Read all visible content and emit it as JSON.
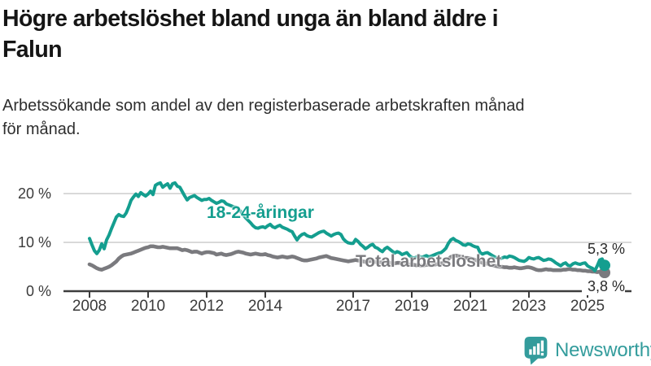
{
  "header": {
    "title_line1": "Högre arbetslöshet bland unga än bland äldre i",
    "title_line2": "Falun",
    "subtitle_line1": "Arbetssökande som andel av den registerbaserade arbetskraften månad",
    "subtitle_line2": "för månad."
  },
  "chart_data": {
    "type": "line",
    "title": "Högre arbetslöshet bland unga än bland äldre i Falun",
    "subtitle": "Arbetssökande som andel av den registerbaserade arbetskraften månad för månad.",
    "unit": "%",
    "grid": "horizontal",
    "legend_position": "inline-labels",
    "x_start_year": 2008,
    "points_per_year": 12,
    "x_ticks": [
      2008,
      2010,
      2012,
      2014,
      2017,
      2019,
      2021,
      2023,
      2025
    ],
    "y_ticks": [
      {
        "value": 0,
        "label": "0 %"
      },
      {
        "value": 10,
        "label": "10 %"
      },
      {
        "value": 20,
        "label": "20 %"
      }
    ],
    "ylim": [
      0,
      23.5
    ],
    "series": [
      {
        "name": "18-24-åringar",
        "color": "#149e8f",
        "end_label": "5,3 %",
        "end_value": 5.3,
        "values": [
          10.8,
          9.5,
          8.3,
          7.7,
          8.4,
          9.7,
          8.7,
          10.5,
          11.5,
          12.8,
          14.0,
          15.2,
          15.7,
          15.4,
          15.3,
          16.0,
          17.2,
          18.6,
          19.3,
          19.9,
          19.4,
          20.2,
          19.8,
          19.5,
          19.9,
          20.5,
          19.8,
          21.7,
          22.0,
          22.2,
          21.3,
          21.7,
          22.0,
          21.1,
          22.0,
          22.2,
          21.5,
          21.3,
          20.4,
          19.5,
          18.7,
          19.2,
          19.4,
          19.6,
          19.2,
          18.9,
          18.6,
          18.8,
          18.8,
          19.0,
          18.6,
          18.3,
          18.0,
          18.2,
          18.5,
          18.4,
          17.9,
          17.7,
          17.5,
          17.3,
          17.2,
          16.8,
          16.3,
          15.6,
          15.0,
          14.5,
          14.0,
          13.4,
          13.0,
          12.9,
          13.1,
          13.2,
          13.0,
          13.4,
          13.7,
          13.2,
          13.0,
          13.3,
          13.5,
          13.1,
          12.9,
          12.7,
          12.4,
          12.2,
          11.3,
          10.5,
          11.2,
          11.6,
          11.8,
          11.4,
          11.2,
          11.1,
          11.4,
          11.7,
          12.0,
          12.2,
          12.3,
          11.9,
          11.6,
          11.3,
          11.6,
          11.8,
          11.9,
          11.6,
          10.7,
          10.2,
          9.9,
          9.8,
          9.8,
          10.6,
          10.2,
          9.6,
          9.2,
          8.7,
          9.0,
          9.4,
          9.6,
          9.0,
          8.8,
          8.4,
          8.1,
          8.7,
          9.0,
          8.6,
          8.2,
          7.8,
          8.1,
          7.9,
          7.5,
          7.7,
          7.9,
          7.3,
          6.9,
          6.8,
          7.0,
          7.2,
          6.9,
          7.1,
          7.3,
          7.0,
          7.2,
          7.4,
          7.6,
          7.8,
          7.9,
          8.3,
          8.8,
          9.8,
          10.5,
          10.8,
          10.4,
          10.2,
          9.9,
          9.5,
          9.4,
          9.7,
          9.6,
          9.3,
          9.1,
          9.0,
          7.9,
          7.6,
          7.8,
          7.9,
          7.6,
          7.3,
          7.0,
          6.8,
          6.6,
          6.8,
          7.0,
          6.9,
          7.2,
          7.1,
          6.9,
          6.6,
          6.3,
          6.2,
          6.1,
          6.4,
          6.9,
          6.7,
          6.6,
          6.8,
          6.9,
          6.6,
          6.3,
          6.4,
          6.6,
          6.5,
          6.2,
          5.8,
          5.5,
          5.2,
          5.6,
          5.8,
          5.3,
          5.2,
          5.6,
          5.8,
          5.6,
          5.5,
          5.7,
          5.8,
          5.2,
          4.9,
          4.7,
          4.2,
          5.2,
          6.4,
          6.6,
          5.3
        ]
      },
      {
        "name": "Total arbetslöshet",
        "color": "#7a7a7e",
        "end_label": "3,8 %",
        "end_value": 3.8,
        "values": [
          5.5,
          5.3,
          5.0,
          4.7,
          4.5,
          4.4,
          4.6,
          4.8,
          5.0,
          5.3,
          5.7,
          6.1,
          6.7,
          7.1,
          7.4,
          7.5,
          7.6,
          7.7,
          7.9,
          8.1,
          8.3,
          8.5,
          8.7,
          8.9,
          9.0,
          9.2,
          9.2,
          9.1,
          9.0,
          9.0,
          9.1,
          9.0,
          8.9,
          8.8,
          8.8,
          8.8,
          8.8,
          8.6,
          8.4,
          8.5,
          8.4,
          8.2,
          8.0,
          8.1,
          8.1,
          7.9,
          7.7,
          7.9,
          8.0,
          8.0,
          7.9,
          7.8,
          7.5,
          7.6,
          7.7,
          7.5,
          7.4,
          7.5,
          7.6,
          7.8,
          8.0,
          8.1,
          8.0,
          7.9,
          7.7,
          7.6,
          7.5,
          7.6,
          7.7,
          7.6,
          7.5,
          7.5,
          7.6,
          7.4,
          7.3,
          7.1,
          7.0,
          6.9,
          7.0,
          7.1,
          7.0,
          6.9,
          7.0,
          7.1,
          7.0,
          6.8,
          6.6,
          6.4,
          6.3,
          6.3,
          6.4,
          6.5,
          6.6,
          6.7,
          6.9,
          7.0,
          7.1,
          7.2,
          7.0,
          6.8,
          6.7,
          6.6,
          6.5,
          6.4,
          6.3,
          6.2,
          6.1,
          6.2,
          6.3,
          6.4,
          6.3,
          6.2,
          6.1,
          6.0,
          6.1,
          6.2,
          6.1,
          6.0,
          5.9,
          5.9,
          5.9,
          6.0,
          5.9,
          5.8,
          5.7,
          5.7,
          5.8,
          5.8,
          5.7,
          5.6,
          5.5,
          5.5,
          5.4,
          5.4,
          5.3,
          5.3,
          5.2,
          5.3,
          5.4,
          5.4,
          5.3,
          5.4,
          5.5,
          5.6,
          5.7,
          5.8,
          6.1,
          6.6,
          7.0,
          7.2,
          7.3,
          7.2,
          7.1,
          6.9,
          6.8,
          6.8,
          6.7,
          6.6,
          6.4,
          6.2,
          6.0,
          5.8,
          5.7,
          5.6,
          5.4,
          5.3,
          5.2,
          5.1,
          5.0,
          5.0,
          4.9,
          4.9,
          4.8,
          4.8,
          4.9,
          4.8,
          4.7,
          4.7,
          4.8,
          4.9,
          4.9,
          4.8,
          4.6,
          4.4,
          4.3,
          4.3,
          4.4,
          4.5,
          4.4,
          4.4,
          4.3,
          4.3,
          4.3,
          4.3,
          4.4,
          4.4,
          4.5,
          4.5,
          4.4,
          4.4,
          4.3,
          4.3,
          4.2,
          4.2,
          4.1,
          4.1,
          4.0,
          4.0,
          3.9,
          4.0,
          4.1,
          3.8
        ]
      }
    ]
  },
  "branding": {
    "logo_text": "Newsworthy",
    "logo_color": "#339c9c"
  }
}
